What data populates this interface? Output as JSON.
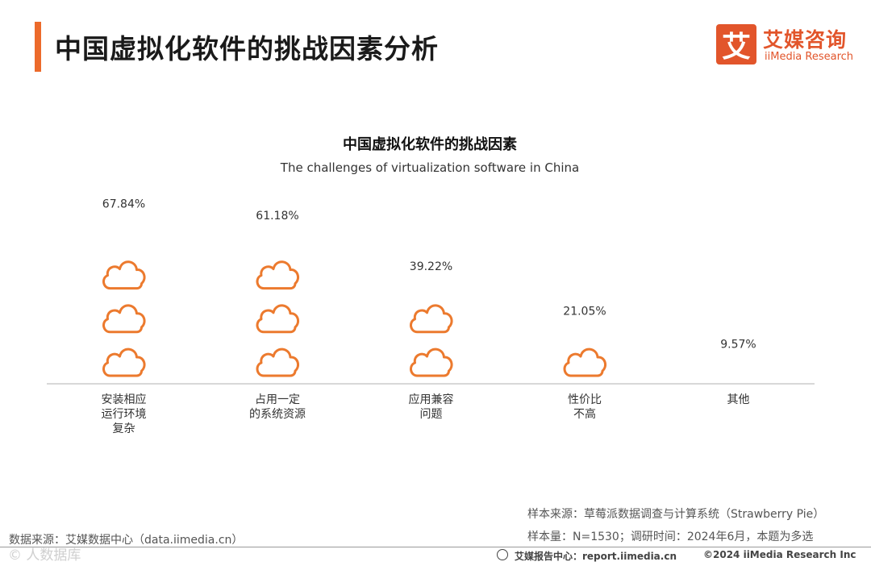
{
  "header": {
    "title": "中国虚拟化软件的挑战因素分析"
  },
  "logo": {
    "mark": "艾",
    "name_cn": "艾媒咨询",
    "name_en": "iiMedia Research"
  },
  "chart_data": {
    "type": "bar",
    "title": "中国虚拟化软件的挑战因素",
    "subtitle": "The challenges of virtualization software in China",
    "categories": [
      [
        "安装相应",
        "运行环境",
        "复杂"
      ],
      [
        "占用一定",
        "的系统资源"
      ],
      [
        "应用兼容",
        "问题"
      ],
      [
        "性价比",
        "不高"
      ],
      [
        "其他"
      ]
    ],
    "values": [
      67.84,
      61.18,
      39.22,
      21.05,
      9.57
    ],
    "value_labels": [
      "67.84%",
      "61.18%",
      "39.22%",
      "21.05%",
      "9.57%"
    ],
    "unit": "%",
    "pictograph": "cloud-icon",
    "units_per_icon": 17.66,
    "color": "#ec7a2e",
    "baseline_color": "#cccccc"
  },
  "footer": {
    "sample_source": "样本来源：草莓派数据调查与计算系统（Strawberry Pie）",
    "sample_size": "样本量：N=1530；调研时间：2024年6月，本题为多选",
    "data_source": "数据来源：艾媒数据中心（data.iimedia.cn）",
    "report_center": "艾媒报告中心：report.iimedia.cn",
    "copyright": "©2024  iiMedia Research  Inc",
    "watermark": "© 人数据库"
  }
}
